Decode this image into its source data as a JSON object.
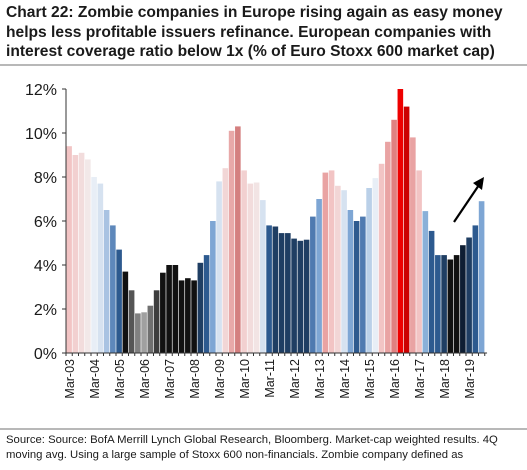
{
  "title": "Chart 22: Zombie companies in Europe rising again as easy money helps less profitable issuers refinance. European companies with interest coverage ratio below 1x (% of Euro Stoxx 600 market cap)",
  "source": "Source: Source: BofA Merrill Lynch Global Research, Bloomberg. Market-cap weighted results. 4Q moving avg. Using a large sample of Stoxx 600 non-financials. Zombie company defined as",
  "chart_data": {
    "type": "bar",
    "title": "Chart 22: Zombie companies in Europe rising again as easy money helps less profitable issuers refinance. European companies with interest coverage ratio below 1x (% of Euro Stoxx 600 market cap)",
    "xlabel": "",
    "ylabel": "",
    "ylim": [
      0,
      12
    ],
    "yticks": [
      "0%",
      "2%",
      "4%",
      "6%",
      "8%",
      "10%",
      "12%"
    ],
    "yticks_values": [
      0,
      2,
      4,
      6,
      8,
      10,
      12
    ],
    "xticks": [
      "Mar-03",
      "Mar-04",
      "Mar-05",
      "Mar-06",
      "Mar-07",
      "Mar-08",
      "Mar-09",
      "Mar-10",
      "Mar-11",
      "Mar-12",
      "Mar-13",
      "Mar-14",
      "Mar-15",
      "Mar-16",
      "Mar-17",
      "Mar-18",
      "Mar-19"
    ],
    "xtick_index": [
      0,
      4,
      8,
      12,
      16,
      20,
      24,
      28,
      32,
      36,
      40,
      44,
      48,
      52,
      56,
      60,
      64
    ],
    "grid": false,
    "legend": "none",
    "annotation": "upward-arrow",
    "values": [
      9.4,
      9.0,
      9.1,
      8.8,
      8.0,
      7.7,
      6.5,
      5.8,
      4.7,
      3.7,
      2.85,
      1.8,
      1.85,
      2.15,
      2.85,
      3.65,
      4.0,
      4.0,
      3.3,
      3.4,
      3.3,
      4.1,
      4.45,
      6.0,
      7.8,
      8.4,
      10.1,
      10.3,
      8.3,
      7.7,
      7.75,
      6.95,
      5.8,
      5.75,
      5.45,
      5.45,
      5.2,
      5.1,
      5.15,
      6.2,
      7.0,
      8.2,
      8.3,
      7.6,
      7.4,
      6.5,
      6.0,
      6.2,
      7.5,
      7.95,
      8.6,
      9.6,
      10.6,
      12.0,
      11.2,
      9.8,
      8.3,
      6.45,
      5.55,
      4.45,
      4.45,
      4.25,
      4.45,
      4.9,
      5.25,
      5.8,
      6.9
    ],
    "colors": [
      "#f2c4c4",
      "#f2d0d0",
      "#f2dcdc",
      "#f2e8e8",
      "#e8eef6",
      "#d6e2f0",
      "#a9c3e2",
      "#5e88bb",
      "#2d5a8f",
      "#111111",
      "#555555",
      "#808080",
      "#a0a0a0",
      "#707070",
      "#3e3e3e",
      "#111111",
      "#111111",
      "#111111",
      "#111111",
      "#111111",
      "#111111",
      "#1f3e63",
      "#2d5a8f",
      "#7ea6d4",
      "#d6e2f0",
      "#f2d6d6",
      "#e8a8a8",
      "#d47f7f",
      "#f2d0d0",
      "#f2dcdc",
      "#f2e4e4",
      "#d6e2f0",
      "#2d5a8f",
      "#1f3e63",
      "#1f3e63",
      "#1f3e63",
      "#1f3e63",
      "#1f3e63",
      "#1f3e63",
      "#4f7ab0",
      "#7ea6d4",
      "#e9a3a3",
      "#f2c4c4",
      "#f2d6d6",
      "#d6e2f0",
      "#7ea6d4",
      "#2d5a8f",
      "#4f7ab0",
      "#bad0e8",
      "#e8eef6",
      "#f2c4c4",
      "#e9a3a3",
      "#e08080",
      "#ee0000",
      "#cc0000",
      "#e9a3a3",
      "#f2c4c4",
      "#8ab0d8",
      "#2d5a8f",
      "#2d5a8f",
      "#1f3e63",
      "#111111",
      "#111111",
      "#0e1e33",
      "#1f3e63",
      "#2d5a8f",
      "#7ea6d4"
    ]
  }
}
